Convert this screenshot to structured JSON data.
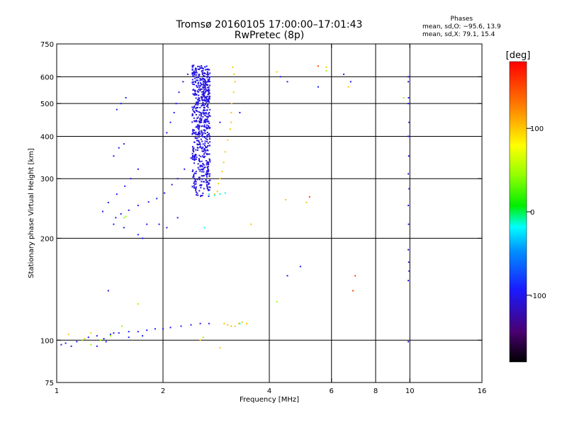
{
  "header": {
    "title": "Tromsø 20160105 17:00:00–17:01:43",
    "subtitle": "RwPretec (8p)"
  },
  "phases_box": {
    "title": "Phases",
    "line_o": "mean, sd,O: −95.6, 13.9",
    "line_x": "mean, sd,X:  79.1, 15.4"
  },
  "chart_data": {
    "type": "scatter",
    "xlabel": "Frequency [MHz]",
    "ylabel": "Stationary phase Virtual Height [km]",
    "x_scale": "log",
    "y_scale": "log",
    "xlim": [
      1,
      16
    ],
    "ylim": [
      75,
      750
    ],
    "x_ticks": [
      1,
      2,
      4,
      6,
      8,
      10,
      16
    ],
    "y_ticks": [
      75,
      100,
      200,
      300,
      400,
      500,
      600,
      750
    ],
    "x_gridlines": [
      2,
      4,
      6,
      8,
      10
    ],
    "y_gridlines": [
      100,
      200,
      300,
      400,
      500,
      600
    ],
    "colorbar": {
      "label": "[deg]",
      "ticks": [
        100,
        0,
        -100
      ],
      "range": [
        -180,
        180
      ],
      "colormap": "rainbow"
    },
    "series": [
      {
        "color_phase": -95,
        "points": [
          [
            1.03,
            97
          ],
          [
            1.06,
            98
          ],
          [
            1.1,
            96
          ],
          [
            1.14,
            99
          ],
          [
            1.18,
            100
          ],
          [
            1.23,
            102
          ],
          [
            1.3,
            103
          ],
          [
            1.36,
            101
          ],
          [
            1.42,
            104
          ],
          [
            1.5,
            105
          ],
          [
            1.6,
            106
          ],
          [
            1.7,
            106
          ],
          [
            1.8,
            107
          ],
          [
            1.9,
            108
          ],
          [
            2.0,
            108
          ],
          [
            2.1,
            109
          ],
          [
            2.25,
            110
          ],
          [
            2.4,
            111
          ],
          [
            2.55,
            112
          ],
          [
            2.7,
            112
          ],
          [
            1.45,
            220
          ],
          [
            1.47,
            230
          ],
          [
            1.52,
            236
          ],
          [
            1.6,
            242
          ],
          [
            1.7,
            250
          ],
          [
            1.82,
            256
          ],
          [
            1.92,
            262
          ],
          [
            2.02,
            272
          ],
          [
            2.12,
            288
          ],
          [
            2.2,
            300
          ],
          [
            2.3,
            320
          ],
          [
            2.4,
            345
          ],
          [
            1.35,
            240
          ],
          [
            1.4,
            255
          ],
          [
            1.48,
            270
          ],
          [
            1.56,
            285
          ],
          [
            1.62,
            300
          ],
          [
            1.7,
            320
          ],
          [
            1.45,
            350
          ],
          [
            1.5,
            370
          ],
          [
            1.55,
            380
          ],
          [
            1.48,
            480
          ],
          [
            1.52,
            500
          ],
          [
            1.57,
            520
          ],
          [
            2.05,
            410
          ],
          [
            2.1,
            440
          ],
          [
            2.15,
            470
          ],
          [
            2.18,
            500
          ],
          [
            2.22,
            540
          ],
          [
            2.28,
            580
          ],
          [
            2.35,
            610
          ],
          [
            2.9,
            440
          ],
          [
            3.3,
            470
          ],
          [
            4.3,
            600
          ],
          [
            4.5,
            580
          ],
          [
            5.5,
            560
          ],
          [
            6.8,
            580
          ],
          [
            6.5,
            610
          ],
          [
            1.7,
            205
          ],
          [
            1.75,
            200
          ],
          [
            2.05,
            215
          ],
          [
            2.2,
            230
          ],
          [
            1.45,
            105
          ],
          [
            1.6,
            102
          ],
          [
            1.75,
            103
          ],
          [
            1.3,
            96
          ],
          [
            1.38,
            99
          ],
          [
            4.9,
            165
          ],
          [
            4.5,
            155
          ],
          [
            1.55,
            215
          ],
          [
            1.8,
            220
          ]
        ]
      },
      {
        "color_phase": -105,
        "dense_band": true,
        "x_range": [
          2.42,
          2.72
        ],
        "y_range": [
          265,
          650
        ],
        "count": 650
      },
      {
        "color_phase": 100,
        "points": [
          [
            3.15,
            640
          ],
          [
            3.18,
            610
          ],
          [
            3.2,
            580
          ],
          [
            3.17,
            540
          ],
          [
            3.13,
            500
          ],
          [
            3.12,
            470
          ],
          [
            3.12,
            440
          ],
          [
            3.1,
            420
          ],
          [
            3.05,
            390
          ],
          [
            3.0,
            360
          ],
          [
            2.97,
            335
          ],
          [
            2.94,
            315
          ],
          [
            2.9,
            300
          ],
          [
            2.87,
            290
          ],
          [
            2.98,
            112
          ],
          [
            3.05,
            111
          ],
          [
            3.12,
            110
          ],
          [
            3.2,
            110
          ],
          [
            3.28,
            112
          ],
          [
            3.35,
            113
          ],
          [
            3.45,
            112
          ],
          [
            2.8,
            270
          ],
          [
            2.85,
            275
          ],
          [
            4.2,
            620
          ],
          [
            5.8,
            640
          ],
          [
            6.7,
            560
          ],
          [
            4.45,
            260
          ],
          [
            5.1,
            255
          ],
          [
            1.08,
            104
          ],
          [
            1.2,
            101
          ],
          [
            1.25,
            105
          ],
          [
            2.55,
            100
          ],
          [
            3.55,
            220
          ],
          [
            2.9,
            95
          ]
        ]
      },
      {
        "color_phase": 45,
        "points": [
          [
            1.18,
            100
          ],
          [
            1.25,
            97
          ],
          [
            1.33,
            100
          ],
          [
            1.42,
            103
          ],
          [
            1.55,
            230
          ],
          [
            1.57,
            232
          ],
          [
            1.53,
            110
          ],
          [
            1.7,
            128
          ],
          [
            2.6,
            102
          ],
          [
            4.2,
            130
          ],
          [
            5.8,
            625
          ],
          [
            9.6,
            520
          ]
        ]
      },
      {
        "color_phase": -15,
        "points": [
          [
            2.7,
            270
          ],
          [
            2.8,
            268
          ],
          [
            2.9,
            270
          ],
          [
            3.0,
            272
          ],
          [
            2.62,
            215
          ],
          [
            3.3,
            112
          ]
        ]
      },
      {
        "color_phase": -110,
        "points": [
          [
            9.9,
            600
          ],
          [
            9.9,
            580
          ],
          [
            9.92,
            520
          ],
          [
            9.9,
            500
          ],
          [
            9.95,
            440
          ],
          [
            9.9,
            400
          ],
          [
            9.93,
            350
          ],
          [
            9.9,
            310
          ],
          [
            9.95,
            280
          ],
          [
            9.9,
            250
          ],
          [
            9.92,
            220
          ],
          [
            9.9,
            185
          ],
          [
            9.93,
            170
          ],
          [
            9.95,
            160
          ],
          [
            9.9,
            150
          ],
          [
            9.9,
            99
          ],
          [
            1.4,
            140
          ],
          [
            1.95,
            220
          ]
        ]
      },
      {
        "color_phase": 150,
        "points": [
          [
            5.5,
            645
          ],
          [
            7.0,
            155
          ],
          [
            5.2,
            265
          ],
          [
            6.9,
            140
          ]
        ]
      }
    ]
  }
}
